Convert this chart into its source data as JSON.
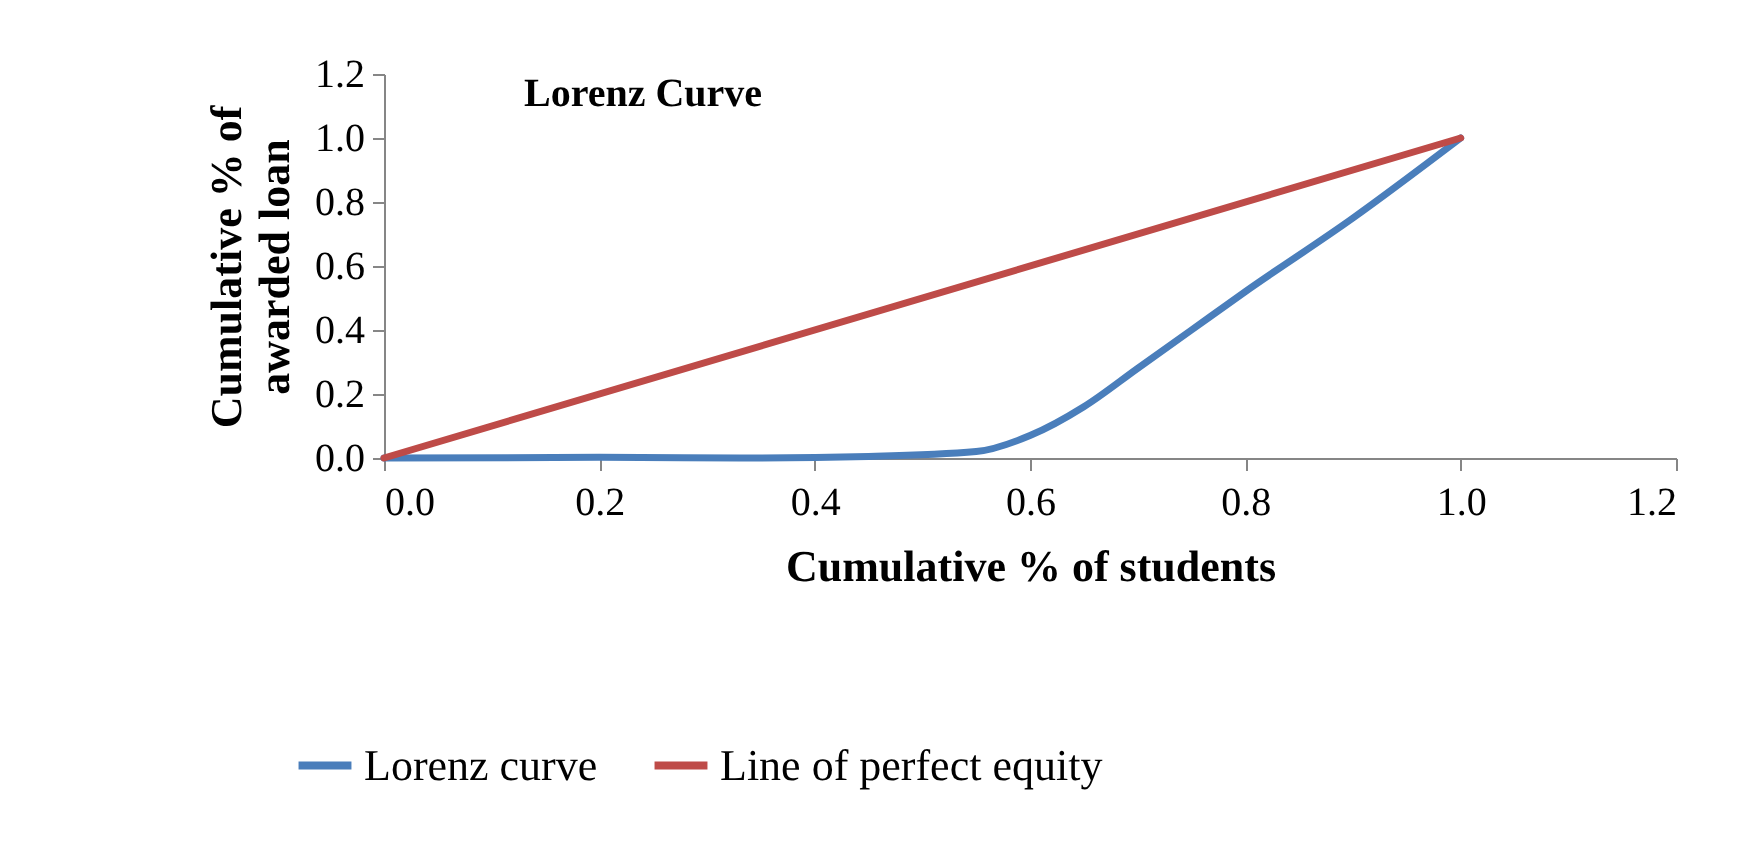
{
  "chart_data": {
    "type": "line",
    "title": "Lorenz Curve",
    "xlabel": "Cumulative % of students",
    "ylabel": "Cumulative % of awarded loan",
    "series": [
      {
        "name": "Lorenz curve",
        "color": "#4a7ebb",
        "x": [
          0,
          0.2,
          0.33,
          0.45,
          0.55,
          0.6,
          0.65,
          0.7,
          0.75,
          0.8,
          0.9,
          1.0
        ],
        "values": [
          0,
          0.002,
          0,
          0.005,
          0.02,
          0.07,
          0.16,
          0.28,
          0.4,
          0.52,
          0.75,
          1.0
        ]
      },
      {
        "name": "Line of perfect equity",
        "color": "#be4b48",
        "x": [
          0,
          1.0
        ],
        "values": [
          0,
          1.0
        ]
      }
    ],
    "xlim": [
      0,
      1.2
    ],
    "xticks": [
      {
        "value": 0,
        "label": "0.0"
      },
      {
        "value": 0.2,
        "label": "0.2"
      },
      {
        "value": 0.4,
        "label": "0.4"
      },
      {
        "value": 0.6,
        "label": "0.6"
      },
      {
        "value": 0.8,
        "label": "0.8"
      },
      {
        "value": 1,
        "label": "1.0"
      },
      {
        "value": 1.2,
        "label": "1.2"
      }
    ],
    "ylim": [
      0,
      1.2
    ],
    "yticks": [
      {
        "value": 0,
        "label": "0.0"
      },
      {
        "value": 0.2,
        "label": "0.2"
      },
      {
        "value": 0.4,
        "label": "0.4"
      },
      {
        "value": 0.6,
        "label": "0.6"
      },
      {
        "value": 0.8,
        "label": "0.8"
      },
      {
        "value": 1,
        "label": "1.0"
      },
      {
        "value": 1.2,
        "label": "1.2"
      }
    ],
    "grid": false,
    "legend": "bottom",
    "marker": "none",
    "line_style": "solid"
  }
}
